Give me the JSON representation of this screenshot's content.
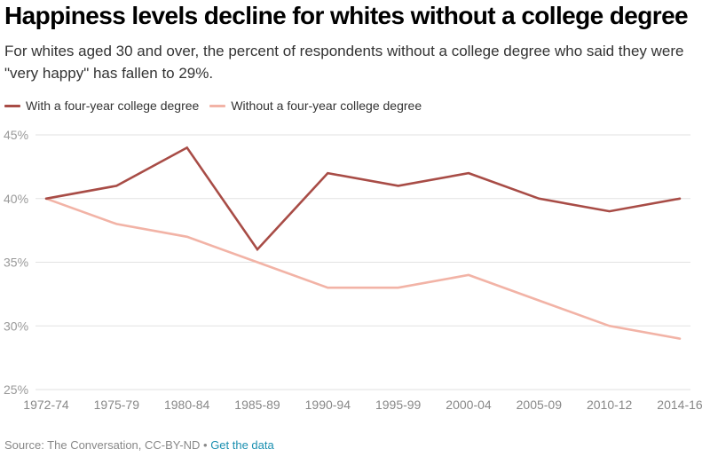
{
  "title": "Happiness levels decline for whites without a college degree",
  "subtitle": "For whites aged 30 and over, the percent of respondents without a college degree who said they were \"very happy\" has fallen to 29%.",
  "footer": {
    "source": "Source: The Conversation, CC-BY-ND",
    "separator": "•",
    "link_label": "Get the data"
  },
  "colors": {
    "with_degree": "#a84c46",
    "without_degree": "#f2b3a6",
    "grid": "#e2e2e2",
    "tick_label": "#999999",
    "link": "#1a8fb0"
  },
  "chart_data": {
    "type": "line",
    "title": "Happiness levels decline for whites without a college degree",
    "xlabel": "",
    "ylabel": "",
    "categories": [
      "1972-74",
      "1975-79",
      "1980-84",
      "1985-89",
      "1990-94",
      "1995-99",
      "2000-04",
      "2005-09",
      "2010-12",
      "2014-16"
    ],
    "ylim": [
      25,
      45
    ],
    "yticks": [
      25,
      30,
      35,
      40,
      45
    ],
    "ytick_labels": [
      "25%",
      "30%",
      "35%",
      "40%",
      "45%"
    ],
    "grid": true,
    "legend_position": "top-left",
    "series": [
      {
        "name": "With a four-year college degree",
        "color": "#a84c46",
        "values": [
          40,
          41,
          44,
          36,
          42,
          41,
          42,
          40,
          39,
          40
        ]
      },
      {
        "name": "Without a four-year college degree",
        "color": "#f2b3a6",
        "values": [
          40,
          38,
          37,
          35,
          33,
          33,
          34,
          32,
          30,
          29
        ]
      }
    ]
  }
}
